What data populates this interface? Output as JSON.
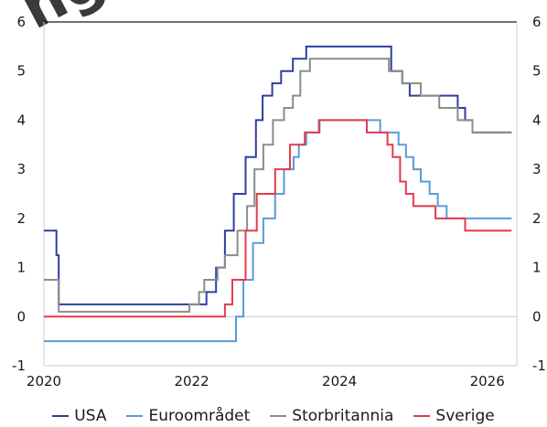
{
  "watermark": "ng",
  "chart_data": {
    "type": "line",
    "step": true,
    "xlim": [
      2020,
      2026.4
    ],
    "ylim": [
      -1,
      6
    ],
    "x_ticks": [
      2020,
      2022,
      2024,
      2026
    ],
    "x_tick_labels": [
      "2020",
      "2022",
      "2024",
      "2026"
    ],
    "y_ticks": [
      -1,
      0,
      1,
      2,
      3,
      4,
      5,
      6
    ],
    "y_tick_labels": [
      "-1",
      "0",
      "1",
      "2",
      "3",
      "4",
      "5",
      "6"
    ],
    "grid": false,
    "legend_position": "bottom",
    "series": [
      {
        "name": "USA",
        "color": "#2f3e9e",
        "points": [
          [
            2020.0,
            1.75
          ],
          [
            2020.17,
            1.25
          ],
          [
            2020.2,
            0.25
          ],
          [
            2022.2,
            0.5
          ],
          [
            2022.33,
            1.0
          ],
          [
            2022.45,
            1.75
          ],
          [
            2022.57,
            2.5
          ],
          [
            2022.73,
            3.25
          ],
          [
            2022.87,
            4.0
          ],
          [
            2022.96,
            4.5
          ],
          [
            2023.09,
            4.75
          ],
          [
            2023.21,
            5.0
          ],
          [
            2023.37,
            5.25
          ],
          [
            2023.55,
            5.5
          ],
          [
            2024.7,
            5.0
          ],
          [
            2024.85,
            4.75
          ],
          [
            2024.95,
            4.5
          ],
          [
            2025.5,
            4.5
          ],
          [
            2025.6,
            4.25
          ],
          [
            2025.7,
            4.0
          ],
          [
            2025.8,
            3.75
          ],
          [
            2026.33,
            3.75
          ]
        ]
      },
      {
        "name": "Euroområdet",
        "color": "#5a9bd8",
        "points": [
          [
            2020.0,
            -0.5
          ],
          [
            2022.57,
            -0.5
          ],
          [
            2022.6,
            0.0
          ],
          [
            2022.7,
            0.75
          ],
          [
            2022.83,
            1.5
          ],
          [
            2022.97,
            2.0
          ],
          [
            2023.13,
            2.5
          ],
          [
            2023.25,
            3.0
          ],
          [
            2023.38,
            3.25
          ],
          [
            2023.45,
            3.5
          ],
          [
            2023.55,
            3.75
          ],
          [
            2023.72,
            4.0
          ],
          [
            2024.45,
            4.0
          ],
          [
            2024.55,
            3.75
          ],
          [
            2024.8,
            3.5
          ],
          [
            2024.9,
            3.25
          ],
          [
            2025.0,
            3.0
          ],
          [
            2025.1,
            2.75
          ],
          [
            2025.22,
            2.5
          ],
          [
            2025.33,
            2.25
          ],
          [
            2025.45,
            2.0
          ],
          [
            2026.33,
            2.0
          ]
        ]
      },
      {
        "name": "Storbritannia",
        "color": "#8c8c8c",
        "points": [
          [
            2020.0,
            0.75
          ],
          [
            2020.2,
            0.1
          ],
          [
            2021.95,
            0.1
          ],
          [
            2021.97,
            0.25
          ],
          [
            2022.1,
            0.5
          ],
          [
            2022.17,
            0.75
          ],
          [
            2022.35,
            1.0
          ],
          [
            2022.45,
            1.25
          ],
          [
            2022.62,
            1.75
          ],
          [
            2022.75,
            2.25
          ],
          [
            2022.85,
            3.0
          ],
          [
            2022.97,
            3.5
          ],
          [
            2023.1,
            4.0
          ],
          [
            2023.25,
            4.25
          ],
          [
            2023.37,
            4.5
          ],
          [
            2023.47,
            5.0
          ],
          [
            2023.6,
            5.25
          ],
          [
            2024.6,
            5.25
          ],
          [
            2024.67,
            5.0
          ],
          [
            2024.85,
            4.75
          ],
          [
            2025.1,
            4.5
          ],
          [
            2025.35,
            4.25
          ],
          [
            2025.6,
            4.0
          ],
          [
            2025.8,
            3.75
          ],
          [
            2026.33,
            3.75
          ]
        ]
      },
      {
        "name": "Sverige",
        "color": "#e33b4b",
        "points": [
          [
            2020.0,
            0.0
          ],
          [
            2022.3,
            0.0
          ],
          [
            2022.45,
            0.25
          ],
          [
            2022.55,
            0.75
          ],
          [
            2022.73,
            1.75
          ],
          [
            2022.88,
            2.5
          ],
          [
            2023.13,
            3.0
          ],
          [
            2023.33,
            3.5
          ],
          [
            2023.53,
            3.75
          ],
          [
            2023.73,
            4.0
          ],
          [
            2024.35,
            4.0
          ],
          [
            2024.37,
            3.75
          ],
          [
            2024.65,
            3.5
          ],
          [
            2024.72,
            3.25
          ],
          [
            2024.82,
            2.75
          ],
          [
            2024.9,
            2.5
          ],
          [
            2025.0,
            2.25
          ],
          [
            2025.3,
            2.0
          ],
          [
            2025.7,
            1.75
          ],
          [
            2026.33,
            1.75
          ]
        ]
      }
    ]
  }
}
